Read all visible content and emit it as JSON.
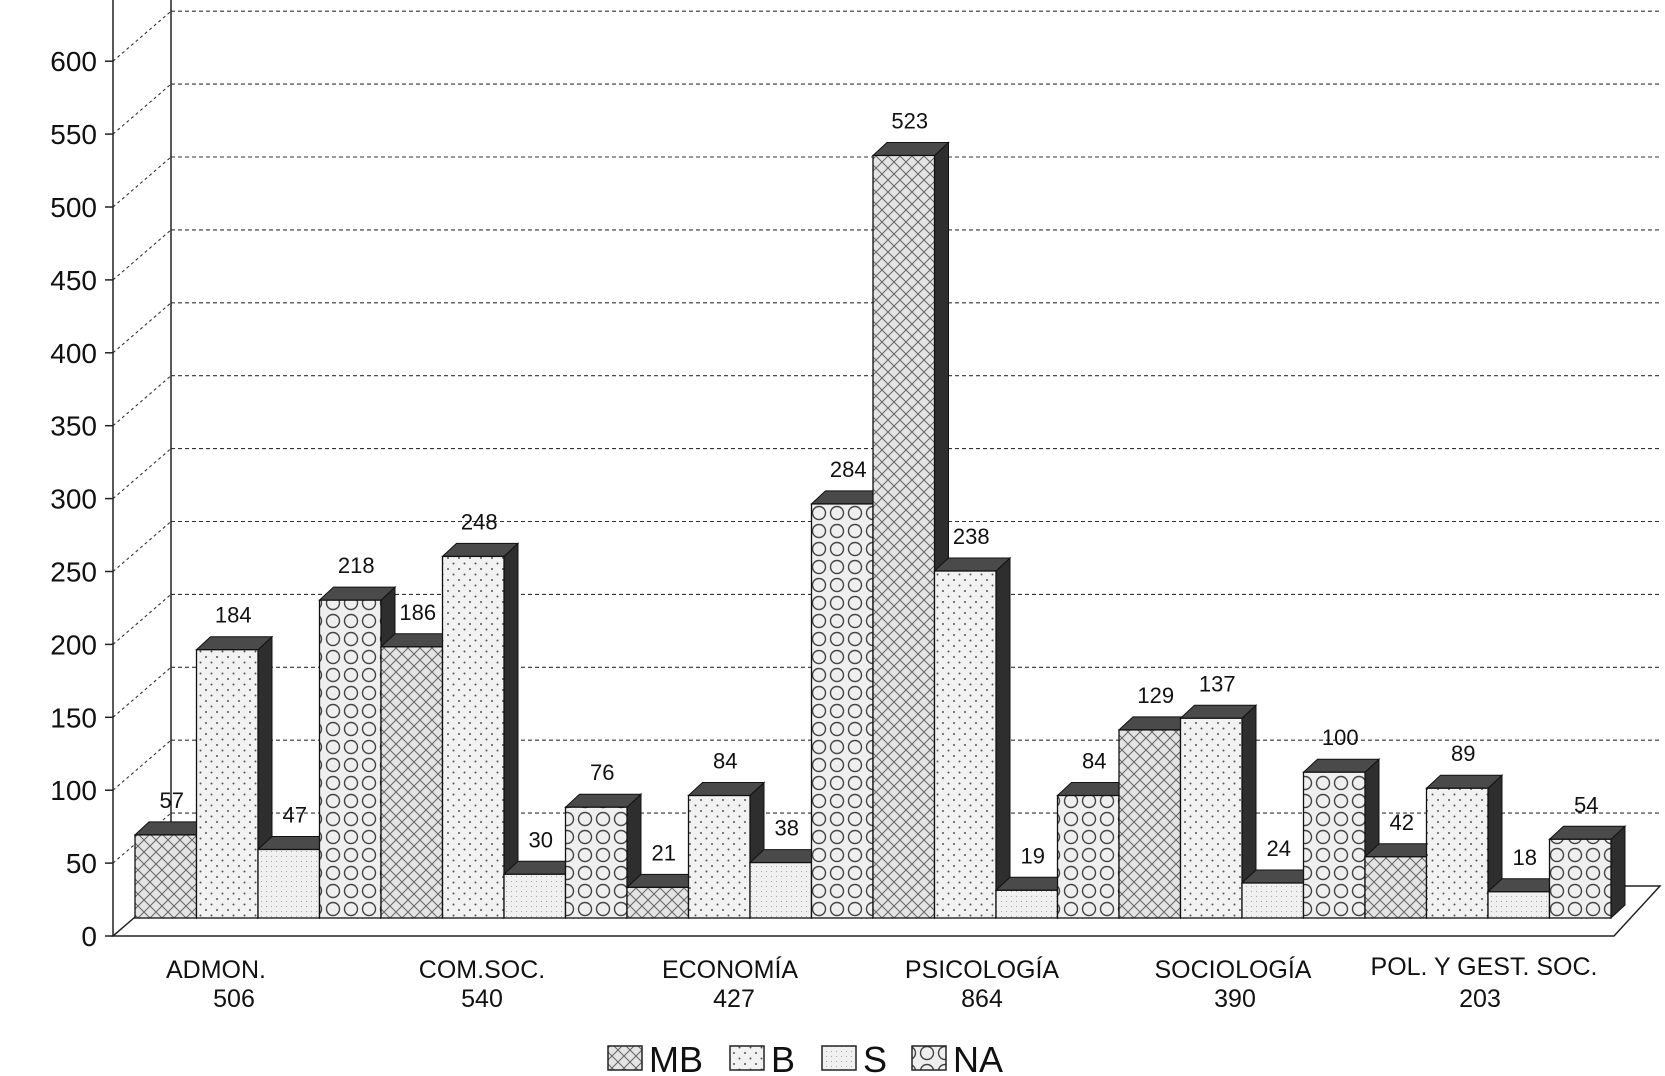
{
  "chart_data": {
    "type": "bar",
    "title": "",
    "xlabel": "",
    "ylabel": "",
    "ylim": [
      0,
      600
    ],
    "yticks": [
      0,
      50,
      100,
      150,
      200,
      250,
      300,
      350,
      400,
      450,
      500,
      550,
      600
    ],
    "grid": true,
    "legend_position": "bottom",
    "categories": [
      {
        "name": "ADMON.",
        "total": "506"
      },
      {
        "name": "COM.SOC.",
        "total": "540"
      },
      {
        "name": "ECONOMÍA",
        "total": "427"
      },
      {
        "name": "PSICOLOGÍA",
        "total": "864"
      },
      {
        "name": "SOCIOLOGÍA",
        "total": "390"
      },
      {
        "name": "POL. Y GEST. SOC.",
        "total": "203"
      }
    ],
    "series": [
      {
        "name": "MB",
        "pattern": "crosshatch",
        "values": [
          57,
          186,
          21,
          523,
          129,
          42
        ]
      },
      {
        "name": "B",
        "pattern": "dots",
        "values": [
          184,
          248,
          84,
          238,
          137,
          89
        ]
      },
      {
        "name": "S",
        "pattern": "fine-dots",
        "values": [
          47,
          30,
          38,
          19,
          24,
          18
        ]
      },
      {
        "name": "NA",
        "pattern": "circles",
        "values": [
          218,
          76,
          284,
          84,
          100,
          54
        ]
      }
    ]
  }
}
